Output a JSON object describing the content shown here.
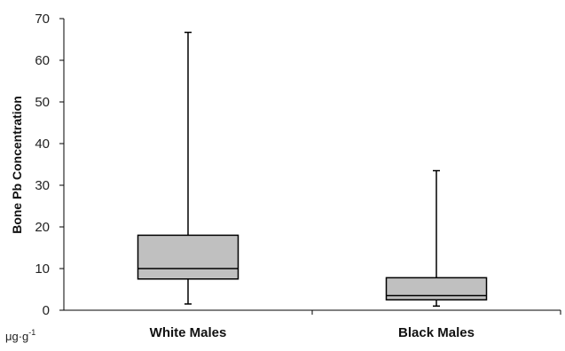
{
  "chart_data": {
    "type": "boxplot",
    "ylabel": "Bone Pb Concentration",
    "unit_label": "μg·g",
    "unit_exponent": "-1",
    "ylim": [
      0,
      70
    ],
    "yticks": [
      0,
      10,
      20,
      30,
      40,
      50,
      60,
      70
    ],
    "categories": [
      "White Males",
      "Black Males"
    ],
    "boxes": [
      {
        "min": 1.5,
        "q1": 7.5,
        "median": 10,
        "q3": 18,
        "max": 66.7
      },
      {
        "min": 1.0,
        "q1": 2.5,
        "median": 3.5,
        "q3": 7.8,
        "max": 33.5
      }
    ],
    "box_fill": "#c0c0c0",
    "line_color": "#000000",
    "grid": false,
    "legend": "none"
  }
}
